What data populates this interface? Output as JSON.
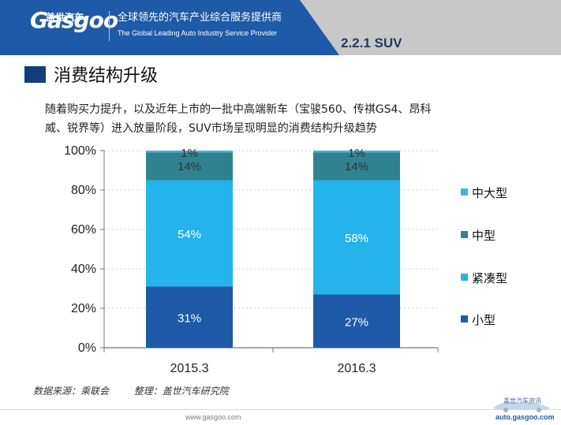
{
  "brand": {
    "logo": "Gasgoo",
    "chinese_name": "盖世汽车",
    "slogan_cn": "全球领先的汽车产业综合服务提供商",
    "slogan_en": "The Global Leading Auto Industry Service Provider"
  },
  "header": {
    "section_number": "2.2.1  SUV"
  },
  "slide": {
    "title": "消费结构升级",
    "intro_lines": [
      "随着购买力提升，以及近年上市的一批中高端新车（宝骏560、传祺GS4、昂科",
      "威、锐界等）进入放量阶段，SUV市场呈现明显的消费结构升级趋势"
    ],
    "source_label": "数据来源：乘联会",
    "compiler_label": "整理：盖世汽车研究院",
    "footer_url": "www.gasgoo.com"
  },
  "watermark": {
    "cn": "盖世汽车资讯",
    "url": "auto.gasgoo.com"
  },
  "colors": {
    "header_blue": "#1f5aa8",
    "header_gray": "#c8c8c8",
    "title_square": "#123f79",
    "small": "#1f5aa8",
    "compact": "#24b3ea",
    "midsize": "#2f8391",
    "large": "#49b3d4",
    "grid": "#cfcfcf",
    "axis": "#777777"
  },
  "chart_data": {
    "type": "bar",
    "stacked": true,
    "percent": true,
    "categories": [
      "2015.3",
      "2016.3"
    ],
    "series": [
      {
        "name": "小型",
        "values": [
          31,
          27
        ],
        "labels": [
          "31%",
          "27%"
        ],
        "color": "#1f5aa8"
      },
      {
        "name": "紧凑型",
        "values": [
          54,
          58
        ],
        "labels": [
          "54%",
          "58%"
        ],
        "color": "#24b3ea"
      },
      {
        "name": "中型",
        "values": [
          14,
          14
        ],
        "labels": [
          "14%",
          "14%"
        ],
        "color": "#2f8391"
      },
      {
        "name": "中大型",
        "values": [
          1,
          1
        ],
        "labels": [
          "1%",
          "1%"
        ],
        "color": "#49b3d4"
      }
    ],
    "ylim": [
      0,
      100
    ],
    "yticks": [
      "0%",
      "20%",
      "40%",
      "60%",
      "80%",
      "100%"
    ],
    "grid": true,
    "legend_position": "right",
    "legend_order": [
      "中大型",
      "中型",
      "紧凑型",
      "小型"
    ]
  }
}
